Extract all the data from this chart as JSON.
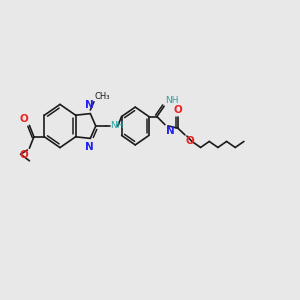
{
  "bg_color": "#e8e8e8",
  "bond_color": "#1a1a1a",
  "bond_width": 1.2,
  "N_color": "#2222ee",
  "O_color": "#ee2222",
  "NH_color": "#2aa0a0",
  "font_size": 6.5,
  "fig_width": 3.0,
  "fig_height": 3.0,
  "dpi": 100,
  "xlim": [
    0,
    12
  ],
  "ylim": [
    0,
    10
  ]
}
